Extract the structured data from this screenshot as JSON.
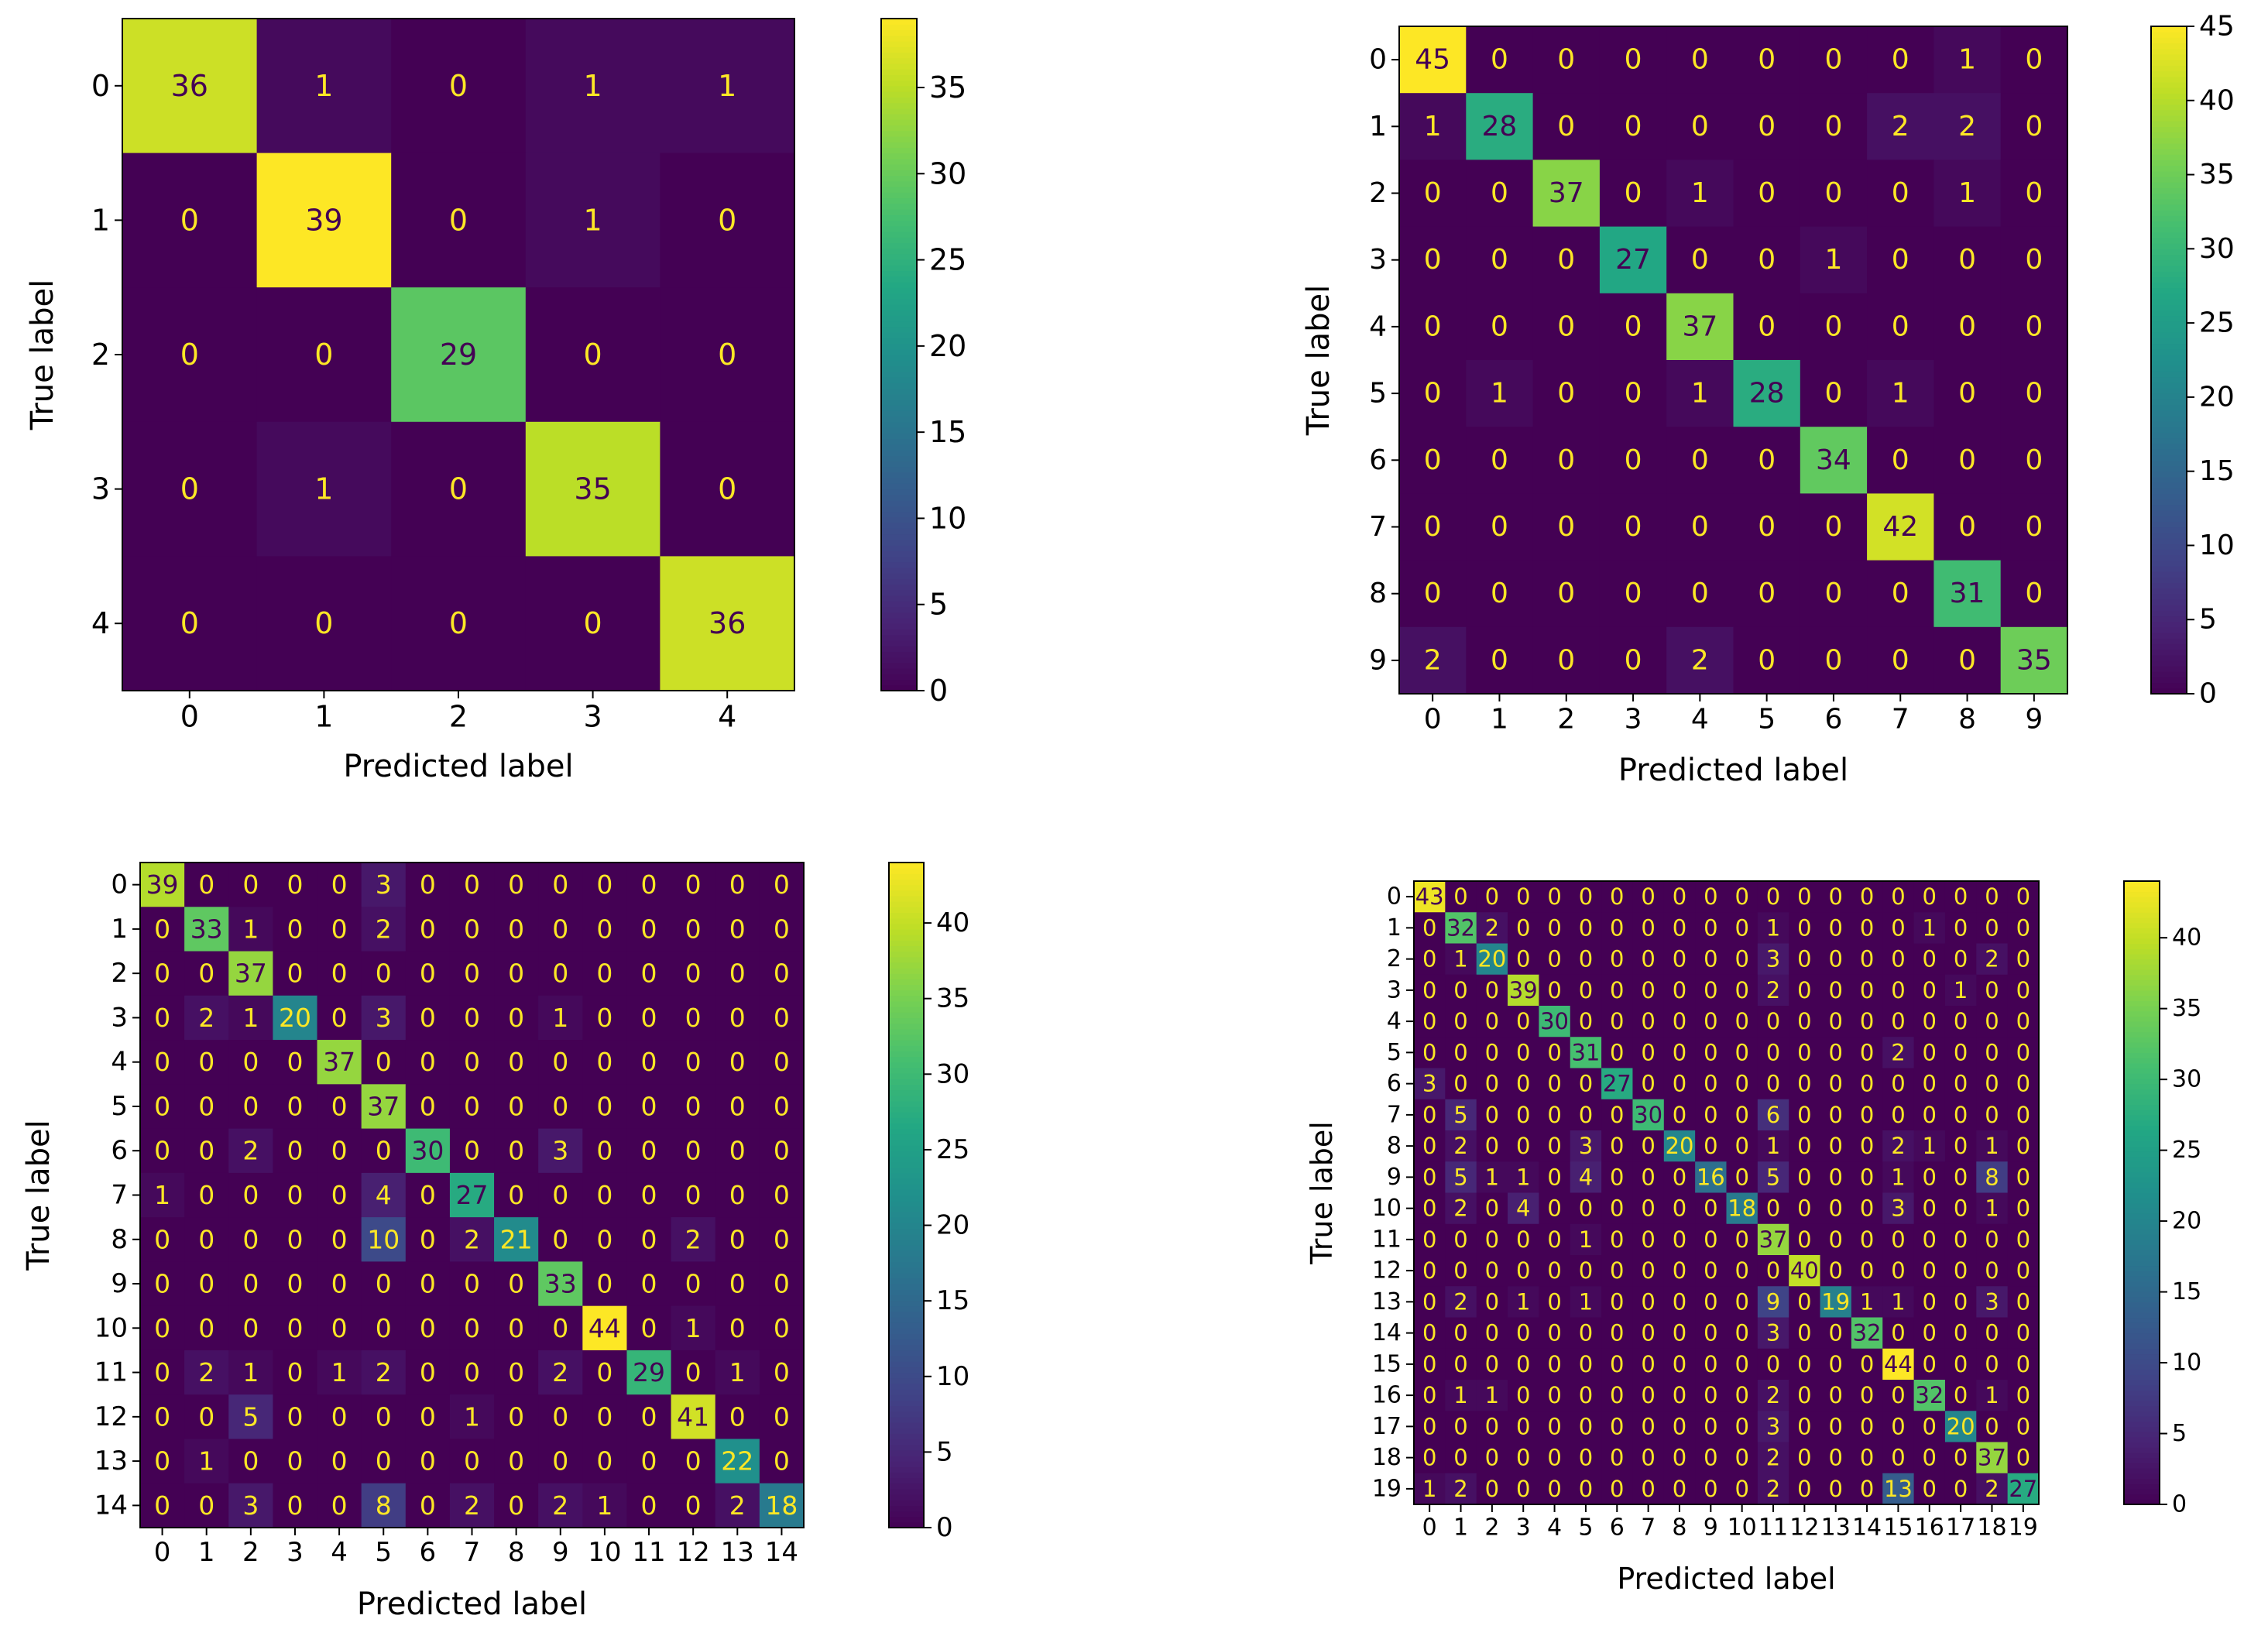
{
  "chart_data": [
    {
      "type": "heatmap",
      "xlabel": "Predicted label",
      "ylabel": "True label",
      "labels": [
        "0",
        "1",
        "2",
        "3",
        "4"
      ],
      "vmin": 0,
      "vmax": 39,
      "colorbar_ticks": [
        0,
        5,
        10,
        15,
        20,
        25,
        30,
        35
      ],
      "matrix": [
        [
          36,
          1,
          0,
          1,
          1
        ],
        [
          0,
          39,
          0,
          1,
          0
        ],
        [
          0,
          0,
          29,
          0,
          0
        ],
        [
          0,
          1,
          0,
          35,
          0
        ],
        [
          0,
          0,
          0,
          0,
          36
        ]
      ]
    },
    {
      "type": "heatmap",
      "xlabel": "Predicted label",
      "ylabel": "True label",
      "labels": [
        "0",
        "1",
        "2",
        "3",
        "4",
        "5",
        "6",
        "7",
        "8",
        "9"
      ],
      "vmin": 0,
      "vmax": 45,
      "colorbar_ticks": [
        0,
        5,
        10,
        15,
        20,
        25,
        30,
        35,
        40,
        45
      ],
      "matrix": [
        [
          45,
          0,
          0,
          0,
          0,
          0,
          0,
          0,
          1,
          0
        ],
        [
          1,
          28,
          0,
          0,
          0,
          0,
          0,
          2,
          2,
          0
        ],
        [
          0,
          0,
          37,
          0,
          1,
          0,
          0,
          0,
          1,
          0
        ],
        [
          0,
          0,
          0,
          27,
          0,
          0,
          1,
          0,
          0,
          0
        ],
        [
          0,
          0,
          0,
          0,
          37,
          0,
          0,
          0,
          0,
          0
        ],
        [
          0,
          1,
          0,
          0,
          1,
          28,
          0,
          1,
          0,
          0
        ],
        [
          0,
          0,
          0,
          0,
          0,
          0,
          34,
          0,
          0,
          0
        ],
        [
          0,
          0,
          0,
          0,
          0,
          0,
          0,
          42,
          0,
          0
        ],
        [
          0,
          0,
          0,
          0,
          0,
          0,
          0,
          0,
          31,
          0
        ],
        [
          2,
          0,
          0,
          0,
          2,
          0,
          0,
          0,
          0,
          35
        ]
      ]
    },
    {
      "type": "heatmap",
      "xlabel": "Predicted label",
      "ylabel": "True label",
      "labels": [
        "0",
        "1",
        "2",
        "3",
        "4",
        "5",
        "6",
        "7",
        "8",
        "9",
        "10",
        "11",
        "12",
        "13",
        "14"
      ],
      "vmin": 0,
      "vmax": 44,
      "colorbar_ticks": [
        0,
        5,
        10,
        15,
        20,
        25,
        30,
        35,
        40
      ],
      "matrix": [
        [
          39,
          0,
          0,
          0,
          0,
          3,
          0,
          0,
          0,
          0,
          0,
          0,
          0,
          0,
          0
        ],
        [
          0,
          33,
          1,
          0,
          0,
          2,
          0,
          0,
          0,
          0,
          0,
          0,
          0,
          0,
          0
        ],
        [
          0,
          0,
          37,
          0,
          0,
          0,
          0,
          0,
          0,
          0,
          0,
          0,
          0,
          0,
          0
        ],
        [
          0,
          2,
          1,
          20,
          0,
          3,
          0,
          0,
          0,
          1,
          0,
          0,
          0,
          0,
          0
        ],
        [
          0,
          0,
          0,
          0,
          37,
          0,
          0,
          0,
          0,
          0,
          0,
          0,
          0,
          0,
          0
        ],
        [
          0,
          0,
          0,
          0,
          0,
          37,
          0,
          0,
          0,
          0,
          0,
          0,
          0,
          0,
          0
        ],
        [
          0,
          0,
          2,
          0,
          0,
          0,
          30,
          0,
          0,
          3,
          0,
          0,
          0,
          0,
          0
        ],
        [
          1,
          0,
          0,
          0,
          0,
          4,
          0,
          27,
          0,
          0,
          0,
          0,
          0,
          0,
          0
        ],
        [
          0,
          0,
          0,
          0,
          0,
          10,
          0,
          2,
          21,
          0,
          0,
          0,
          2,
          0,
          0
        ],
        [
          0,
          0,
          0,
          0,
          0,
          0,
          0,
          0,
          0,
          33,
          0,
          0,
          0,
          0,
          0
        ],
        [
          0,
          0,
          0,
          0,
          0,
          0,
          0,
          0,
          0,
          0,
          44,
          0,
          1,
          0,
          0
        ],
        [
          0,
          2,
          1,
          0,
          1,
          2,
          0,
          0,
          0,
          2,
          0,
          29,
          0,
          1,
          0
        ],
        [
          0,
          0,
          5,
          0,
          0,
          0,
          0,
          1,
          0,
          0,
          0,
          0,
          41,
          0,
          0
        ],
        [
          0,
          1,
          0,
          0,
          0,
          0,
          0,
          0,
          0,
          0,
          0,
          0,
          0,
          22,
          0
        ],
        [
          0,
          0,
          3,
          0,
          0,
          8,
          0,
          2,
          0,
          2,
          1,
          0,
          0,
          2,
          18
        ]
      ]
    },
    {
      "type": "heatmap",
      "xlabel": "Predicted label",
      "ylabel": "True label",
      "labels": [
        "0",
        "1",
        "2",
        "3",
        "4",
        "5",
        "6",
        "7",
        "8",
        "9",
        "10",
        "11",
        "12",
        "13",
        "14",
        "15",
        "16",
        "17",
        "18",
        "19"
      ],
      "vmin": 0,
      "vmax": 44,
      "colorbar_ticks": [
        0,
        5,
        10,
        15,
        20,
        25,
        30,
        35,
        40
      ],
      "matrix": [
        [
          43,
          0,
          0,
          0,
          0,
          0,
          0,
          0,
          0,
          0,
          0,
          0,
          0,
          0,
          0,
          0,
          0,
          0,
          0,
          0
        ],
        [
          0,
          32,
          2,
          0,
          0,
          0,
          0,
          0,
          0,
          0,
          0,
          1,
          0,
          0,
          0,
          0,
          1,
          0,
          0,
          0
        ],
        [
          0,
          1,
          20,
          0,
          0,
          0,
          0,
          0,
          0,
          0,
          0,
          3,
          0,
          0,
          0,
          0,
          0,
          0,
          2,
          0
        ],
        [
          0,
          0,
          0,
          39,
          0,
          0,
          0,
          0,
          0,
          0,
          0,
          2,
          0,
          0,
          0,
          0,
          0,
          1,
          0,
          0
        ],
        [
          0,
          0,
          0,
          0,
          30,
          0,
          0,
          0,
          0,
          0,
          0,
          0,
          0,
          0,
          0,
          0,
          0,
          0,
          0,
          0
        ],
        [
          0,
          0,
          0,
          0,
          0,
          31,
          0,
          0,
          0,
          0,
          0,
          0,
          0,
          0,
          0,
          2,
          0,
          0,
          0,
          0
        ],
        [
          3,
          0,
          0,
          0,
          0,
          0,
          27,
          0,
          0,
          0,
          0,
          0,
          0,
          0,
          0,
          0,
          0,
          0,
          0,
          0
        ],
        [
          0,
          5,
          0,
          0,
          0,
          0,
          0,
          30,
          0,
          0,
          0,
          6,
          0,
          0,
          0,
          0,
          0,
          0,
          0,
          0
        ],
        [
          0,
          2,
          0,
          0,
          0,
          3,
          0,
          0,
          20,
          0,
          0,
          1,
          0,
          0,
          0,
          2,
          1,
          0,
          1,
          0
        ],
        [
          0,
          5,
          1,
          1,
          0,
          4,
          0,
          0,
          0,
          16,
          0,
          5,
          0,
          0,
          0,
          1,
          0,
          0,
          8,
          0
        ],
        [
          0,
          2,
          0,
          4,
          0,
          0,
          0,
          0,
          0,
          0,
          18,
          0,
          0,
          0,
          0,
          3,
          0,
          0,
          1,
          0
        ],
        [
          0,
          0,
          0,
          0,
          0,
          1,
          0,
          0,
          0,
          0,
          0,
          37,
          0,
          0,
          0,
          0,
          0,
          0,
          0,
          0
        ],
        [
          0,
          0,
          0,
          0,
          0,
          0,
          0,
          0,
          0,
          0,
          0,
          0,
          40,
          0,
          0,
          0,
          0,
          0,
          0,
          0
        ],
        [
          0,
          2,
          0,
          1,
          0,
          1,
          0,
          0,
          0,
          0,
          0,
          9,
          0,
          19,
          1,
          1,
          0,
          0,
          3,
          0
        ],
        [
          0,
          0,
          0,
          0,
          0,
          0,
          0,
          0,
          0,
          0,
          0,
          3,
          0,
          0,
          32,
          0,
          0,
          0,
          0,
          0
        ],
        [
          0,
          0,
          0,
          0,
          0,
          0,
          0,
          0,
          0,
          0,
          0,
          0,
          0,
          0,
          0,
          44,
          0,
          0,
          0,
          0
        ],
        [
          0,
          1,
          1,
          0,
          0,
          0,
          0,
          0,
          0,
          0,
          0,
          2,
          0,
          0,
          0,
          0,
          32,
          0,
          1,
          0
        ],
        [
          0,
          0,
          0,
          0,
          0,
          0,
          0,
          0,
          0,
          0,
          0,
          3,
          0,
          0,
          0,
          0,
          0,
          20,
          0,
          0
        ],
        [
          0,
          0,
          0,
          0,
          0,
          0,
          0,
          0,
          0,
          0,
          0,
          2,
          0,
          0,
          0,
          0,
          0,
          0,
          37,
          0
        ],
        [
          1,
          2,
          0,
          0,
          0,
          0,
          0,
          0,
          0,
          0,
          0,
          2,
          0,
          0,
          0,
          13,
          0,
          0,
          2,
          27
        ]
      ]
    }
  ]
}
